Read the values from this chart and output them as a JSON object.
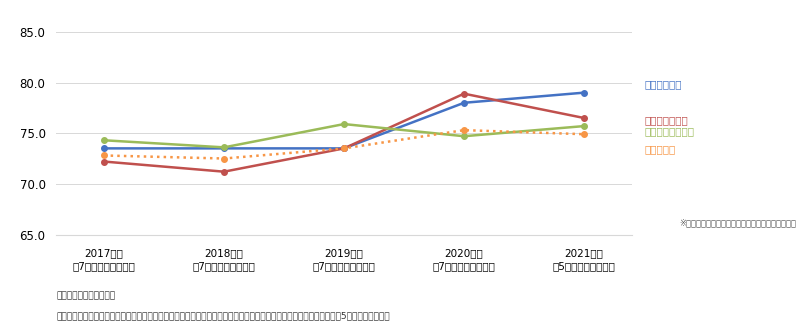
{
  "years": [
    "2017年度\n（7企業・ブランド）",
    "2018年度\n（7企業・ブランド）",
    "2019年度\n（7企業・ブランド）",
    "2020年度\n（7企業・ブランド）",
    "2021年度\n（5企業・ブランド）"
  ],
  "komeda": [
    73.5,
    73.5,
    73.5,
    78.0,
    79.0
  ],
  "starbucks": [
    72.2,
    71.2,
    73.5,
    78.9,
    76.5
  ],
  "doutor": [
    74.3,
    73.6,
    75.9,
    74.7,
    75.7
  ],
  "cafe_avg": [
    72.8,
    72.5,
    73.5,
    75.3,
    74.9
  ],
  "komeda_color": "#4472C4",
  "starbucks_color": "#C0504D",
  "doutor_color": "#9BBB59",
  "cafe_avg_color": "#F79646",
  "ylim_min": 65.0,
  "ylim_max": 85.5,
  "yticks": [
    65.0,
    70.0,
    75.0,
    80.0,
    85.0
  ],
  "legend_komeda": "コメダ珈琲店",
  "legend_starbucks": "スターバックス",
  "legend_doutor": "ドトールコーヒー",
  "legend_cafe_avg": "カフェ平均",
  "note": "※平均にはランキング対象外調査企業の結果も含む",
  "footnote_header": "［調査企業・ブランド］",
  "footnote_body": "ランキング対象　：　コメダ珈琲店、スターバックス、タリーズコーヒー、ドトールコーヒー、ミスタードーナツ　（5企業・ブランド）"
}
